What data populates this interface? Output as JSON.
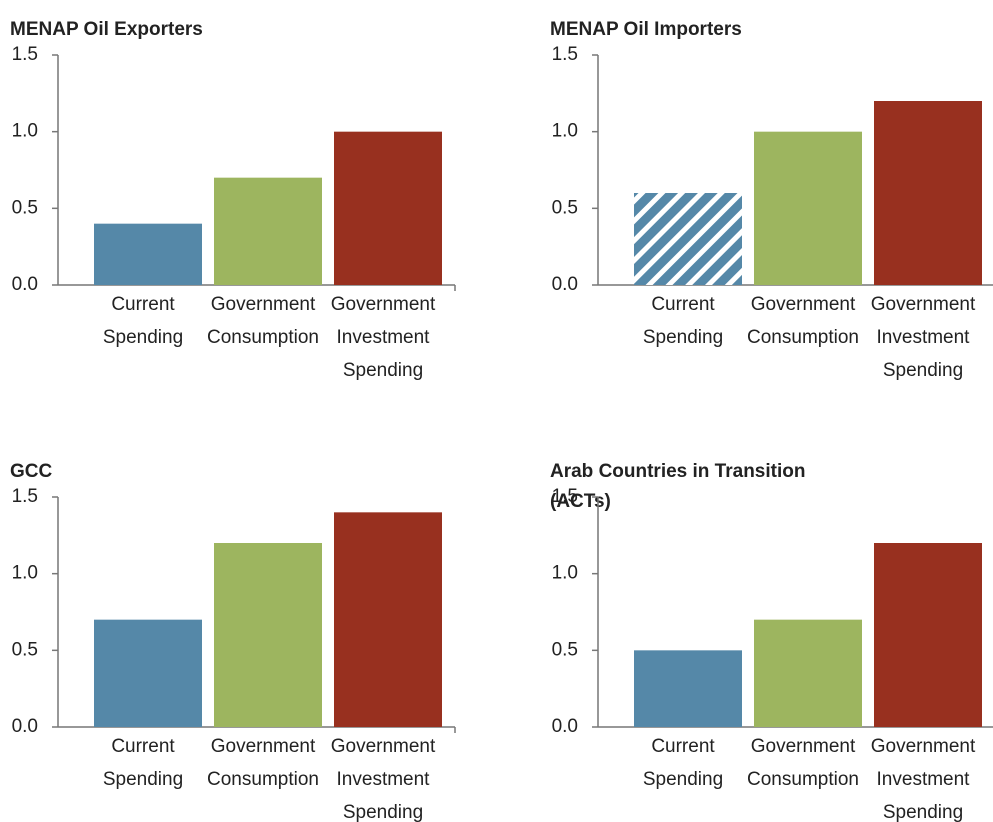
{
  "chart_data": [
    {
      "type": "bar",
      "title": [
        "MENAP Oil Exporters"
      ],
      "categories": [
        [
          "Current",
          "Spending"
        ],
        [
          "Government",
          "Consumption"
        ],
        [
          "Government",
          "Investment",
          "Spending"
        ]
      ],
      "values": [
        0.4,
        0.7,
        1.0
      ],
      "colors": [
        "#5588a8",
        "#9db55f",
        "#98301f"
      ],
      "ylim": [
        0,
        1.5
      ],
      "yticks": [
        {
          "value": 0,
          "label": "0.0"
        },
        0.5,
        {
          "value": 1,
          "label": "1.0"
        },
        1.5
      ]
    },
    {
      "type": "bar",
      "title": [
        "MENAP Oil Importers"
      ],
      "categories": [
        [
          "Current",
          "Spending"
        ],
        [
          "Government",
          "Consumption"
        ],
        [
          "Government",
          "Investment",
          "Spending"
        ]
      ],
      "values": [
        0.6,
        1.0,
        1.2
      ],
      "colors": [
        "#5588a8",
        "#9db55f",
        "#98301f"
      ],
      "hatched": [
        0
      ],
      "ylim": [
        0,
        1.5
      ],
      "yticks": [
        {
          "value": 0,
          "label": "0.0"
        },
        0.5,
        {
          "value": 1,
          "label": "1.0"
        },
        1.5
      ]
    },
    {
      "type": "bar",
      "title": [
        "GCC"
      ],
      "categories": [
        [
          "Current",
          "Spending"
        ],
        [
          "Government",
          "Consumption"
        ],
        [
          "Government",
          "Investment",
          "Spending"
        ]
      ],
      "values": [
        0.7,
        1.2,
        1.4
      ],
      "colors": [
        "#5588a8",
        "#9db55f",
        "#98301f"
      ],
      "ylim": [
        0,
        1.5
      ],
      "yticks": [
        {
          "value": 0,
          "label": "0.0"
        },
        0.5,
        {
          "value": 1,
          "label": "1.0"
        },
        1.5
      ]
    },
    {
      "type": "bar",
      "title": [
        "Arab Countries in Transition",
        "(ACTs)"
      ],
      "categories": [
        [
          "Current",
          "Spending"
        ],
        [
          "Government",
          "Consumption"
        ],
        [
          "Government",
          "Investment",
          "Spending"
        ]
      ],
      "values": [
        0.5,
        0.7,
        1.2
      ],
      "colors": [
        "#5588a8",
        "#9db55f",
        "#98301f"
      ],
      "ylim": [
        0,
        1.5
      ],
      "yticks": [
        {
          "value": 0,
          "label": "0.0"
        },
        0.5,
        {
          "value": 1,
          "label": "1.0"
        },
        1.5
      ]
    }
  ]
}
